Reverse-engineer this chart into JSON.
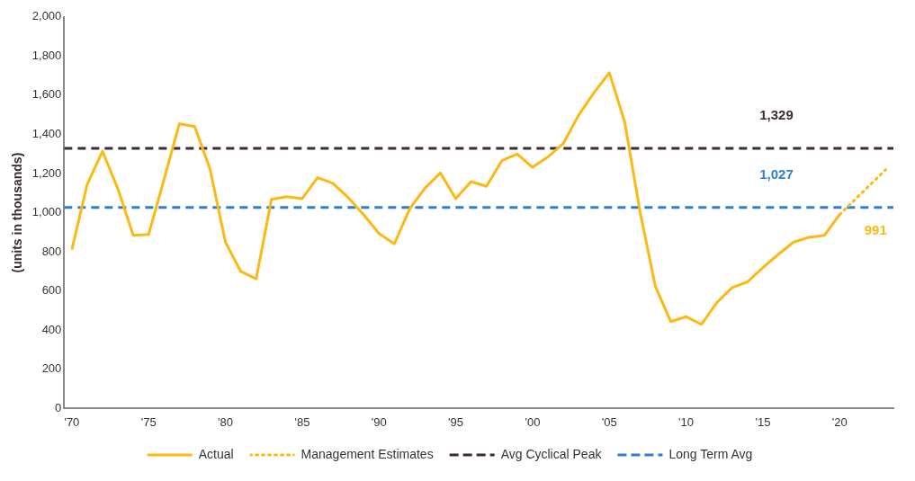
{
  "chart_data": {
    "type": "line",
    "ylabel": "(units in thousands)",
    "x": [
      1970,
      1971,
      1972,
      1973,
      1974,
      1975,
      1976,
      1977,
      1978,
      1979,
      1980,
      1981,
      1982,
      1983,
      1984,
      1985,
      1986,
      1987,
      1988,
      1989,
      1990,
      1991,
      1992,
      1993,
      1994,
      1995,
      1996,
      1997,
      1998,
      1999,
      2000,
      2001,
      2002,
      2003,
      2004,
      2005,
      2006,
      2007,
      2008,
      2009,
      2010,
      2011,
      2012,
      2013,
      2014,
      2015,
      2016,
      2017,
      2018,
      2019,
      2020
    ],
    "series": [
      {
        "name": "Actual",
        "color": "#fcb813",
        "line_style": "solid",
        "values": [
          812,
          1145,
          1314,
          1121,
          884,
          889,
          1169,
          1454,
          1440,
          1222,
          850,
          700,
          662,
          1068,
          1082,
          1072,
          1179,
          1150,
          1077,
          990,
          894,
          841,
          1019,
          1126,
          1203,
          1072,
          1159,
          1135,
          1266,
          1300,
          1232,
          1285,
          1353,
          1498,
          1613,
          1715,
          1464,
          1005,
          623,
          444,
          469,
          430,
          541,
          618,
          647,
          720,
          787,
          850,
          874,
          884,
          991
        ],
        "value_labels": [
          null,
          null,
          null,
          null,
          null,
          null,
          null,
          null,
          null,
          null,
          null,
          null,
          null,
          null,
          null,
          null,
          null,
          null,
          null,
          null,
          null,
          null,
          null,
          null,
          null,
          null,
          null,
          null,
          null,
          null,
          null,
          null,
          null,
          null,
          null,
          null,
          null,
          null,
          null,
          null,
          null,
          null,
          null,
          null,
          null,
          null,
          null,
          null,
          null,
          null,
          "991"
        ]
      },
      {
        "name": "Management Estimates",
        "color": "#fcb813",
        "line_style": "dotted",
        "x": [
          2020,
          2023
        ],
        "values": [
          991,
          1220
        ]
      }
    ],
    "ref_lines": [
      {
        "axis": "y",
        "value": 1329,
        "label": "Avg Cyclical Peak",
        "color": "#3d2a36",
        "line_style": "dashed"
      },
      {
        "axis": "y",
        "value": 1027,
        "label": "Long Term Avg",
        "color": "#2b80d4",
        "line_style": "dashed"
      }
    ],
    "annotations": [
      "1,329",
      "1,027"
    ],
    "xlim": [
      1969.5,
      2023.5
    ],
    "xticks": [
      {
        "value": 1970,
        "label": "'70"
      },
      {
        "value": 1975,
        "label": "'75"
      },
      {
        "value": 1980,
        "label": "'80"
      },
      {
        "value": 1985,
        "label": "'85"
      },
      {
        "value": 1990,
        "label": "'90"
      },
      {
        "value": 1995,
        "label": "'95"
      },
      {
        "value": 2000,
        "label": "'00"
      },
      {
        "value": 2005,
        "label": "'05"
      },
      {
        "value": 2010,
        "label": "'10"
      },
      {
        "value": 2015,
        "label": "'15"
      },
      {
        "value": 2020,
        "label": "'20"
      }
    ],
    "ylim": [
      0,
      2000
    ],
    "yticks": [
      {
        "value": 0,
        "label": "0"
      },
      {
        "value": 200,
        "label": "200"
      },
      {
        "value": 400,
        "label": "400"
      },
      {
        "value": 600,
        "label": "600"
      },
      {
        "value": 800,
        "label": "800"
      },
      {
        "value": 1000,
        "label": "1,000"
      },
      {
        "value": 1200,
        "label": "1,200"
      },
      {
        "value": 1400,
        "label": "1,400"
      },
      {
        "value": 1600,
        "label": "1,600"
      },
      {
        "value": 1800,
        "label": "1,800"
      },
      {
        "value": 2000,
        "label": "2,000"
      }
    ],
    "grid": false,
    "legend": "bottom",
    "marker": "none"
  }
}
